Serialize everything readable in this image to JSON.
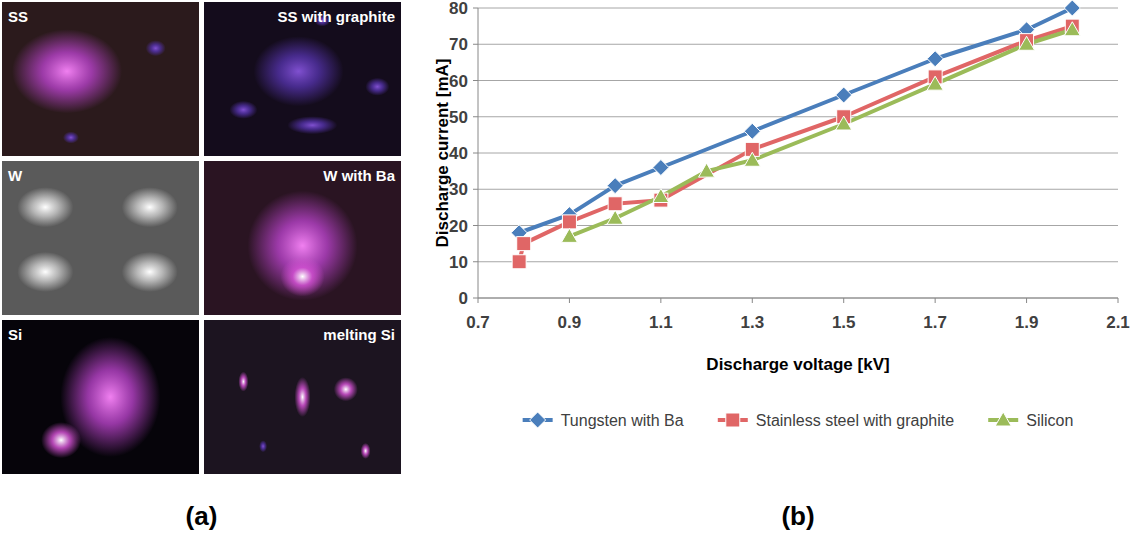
{
  "photo_panel": {
    "label": "(a)",
    "tiles": [
      "SS",
      "SS with graphite",
      "W",
      "W with Ba",
      "Si",
      "melting Si"
    ]
  },
  "chart_data": {
    "type": "line",
    "panel_label": "(b)",
    "x_label": "Discharge voltage [kV]",
    "y_label": "Discharge current [mA]",
    "xlim": [
      0.7,
      2.1
    ],
    "xticks": [
      0.7,
      0.9,
      1.1,
      1.3,
      1.5,
      1.7,
      1.9,
      2.1
    ],
    "ylim": [
      0,
      80
    ],
    "yticks": [
      0,
      10,
      20,
      30,
      40,
      50,
      60,
      70,
      80
    ],
    "grid": true,
    "legend": "bottom",
    "series": [
      {
        "name": "Tungsten with Ba",
        "color": "#4a7ebb",
        "marker": "diamond",
        "x": [
          0.79,
          0.9,
          1.0,
          1.1,
          1.3,
          1.5,
          1.7,
          1.9,
          2.0
        ],
        "values": [
          18,
          23,
          31,
          36,
          46,
          56,
          66,
          74,
          80
        ]
      },
      {
        "name": "Stainless steel with graphite",
        "color": "#e06666",
        "marker": "square",
        "x": [
          0.79,
          0.8,
          0.9,
          1.0,
          1.1,
          1.3,
          1.5,
          1.7,
          1.9,
          2.0
        ],
        "values": [
          10,
          15,
          21,
          26,
          27,
          41,
          50,
          61,
          71,
          75
        ]
      },
      {
        "name": "Silicon",
        "color": "#9bbb59",
        "marker": "triangle",
        "x": [
          0.9,
          1.0,
          1.1,
          1.2,
          1.3,
          1.5,
          1.7,
          1.9,
          2.0
        ],
        "values": [
          17,
          22,
          28,
          35,
          38,
          48,
          59,
          70,
          74
        ]
      }
    ]
  }
}
